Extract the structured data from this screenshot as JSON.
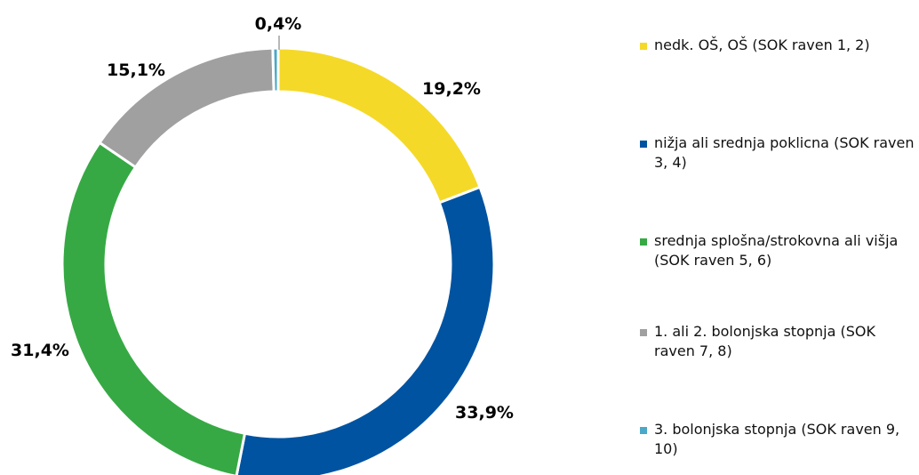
{
  "chart_data": {
    "type": "pie",
    "variant": "donut",
    "title": "",
    "categories": [
      "nedk. OŠ, OŠ (SOK raven 1, 2)",
      "nižja ali srednja poklicna (SOK raven 3, 4)",
      "srednja splošna/strokovna ali višja (SOK raven 5, 6)",
      "1. ali 2. bolonjska stopnja (SOK raven 7, 8)",
      "3. bolonjska stopnja (SOK raven 9, 10)"
    ],
    "values": [
      19.2,
      33.9,
      31.4,
      15.1,
      0.4
    ],
    "labels": [
      "19,2%",
      "33,9%",
      "31,4%",
      "15,1%",
      "0,4%"
    ],
    "colors": [
      "#F5D928",
      "#0053A0",
      "#36A944",
      "#A0A0A0",
      "#4BA8C8"
    ],
    "legend_position": "right"
  }
}
